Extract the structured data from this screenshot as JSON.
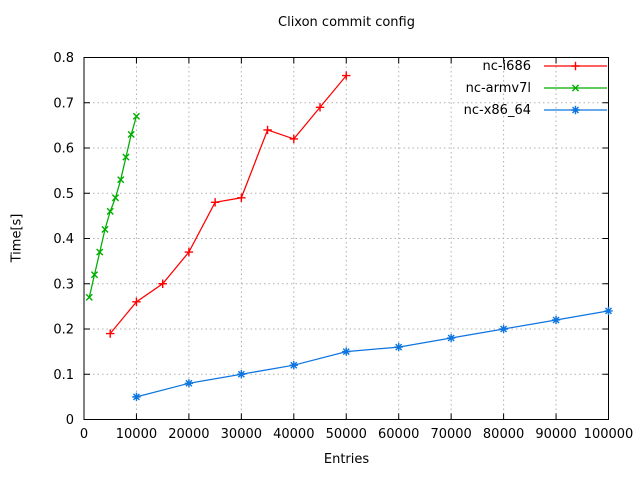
{
  "chart_data": {
    "type": "line",
    "title": "Clixon commit config",
    "xlabel": "Entries",
    "ylabel": "Time[s]",
    "xlim": [
      0,
      100000
    ],
    "ylim": [
      0,
      0.8
    ],
    "xticks": [
      0,
      10000,
      20000,
      30000,
      40000,
      50000,
      60000,
      70000,
      80000,
      90000,
      100000
    ],
    "yticks": [
      0,
      0.1,
      0.2,
      0.3,
      0.4,
      0.5,
      0.6,
      0.7,
      0.8
    ],
    "grid": true,
    "grid_color": "#b0b0b0",
    "border_color": "#000000",
    "background_color": "#ffffff",
    "legend_position": "top-right-inside",
    "series": [
      {
        "name": "nc-i686",
        "color": "#ff0000",
        "marker": "plus",
        "x": [
          5000,
          10000,
          15000,
          20000,
          25000,
          30000,
          35000,
          40000,
          45000,
          50000
        ],
        "y": [
          0.19,
          0.26,
          0.3,
          0.37,
          0.48,
          0.49,
          0.64,
          0.62,
          0.69,
          0.76
        ]
      },
      {
        "name": "nc-armv7l",
        "color": "#00ad00",
        "marker": "cross",
        "x": [
          1000,
          2000,
          3000,
          4000,
          5000,
          6000,
          7000,
          8000,
          9000,
          10000
        ],
        "y": [
          0.27,
          0.32,
          0.37,
          0.42,
          0.46,
          0.49,
          0.53,
          0.58,
          0.63,
          0.67
        ]
      },
      {
        "name": "nc-x86_64",
        "color": "#0d75e0",
        "marker": "asterisk",
        "x": [
          10000,
          20000,
          30000,
          40000,
          50000,
          60000,
          70000,
          80000,
          90000,
          100000
        ],
        "y": [
          0.05,
          0.08,
          0.1,
          0.12,
          0.15,
          0.16,
          0.18,
          0.2,
          0.22,
          0.24
        ]
      }
    ]
  }
}
